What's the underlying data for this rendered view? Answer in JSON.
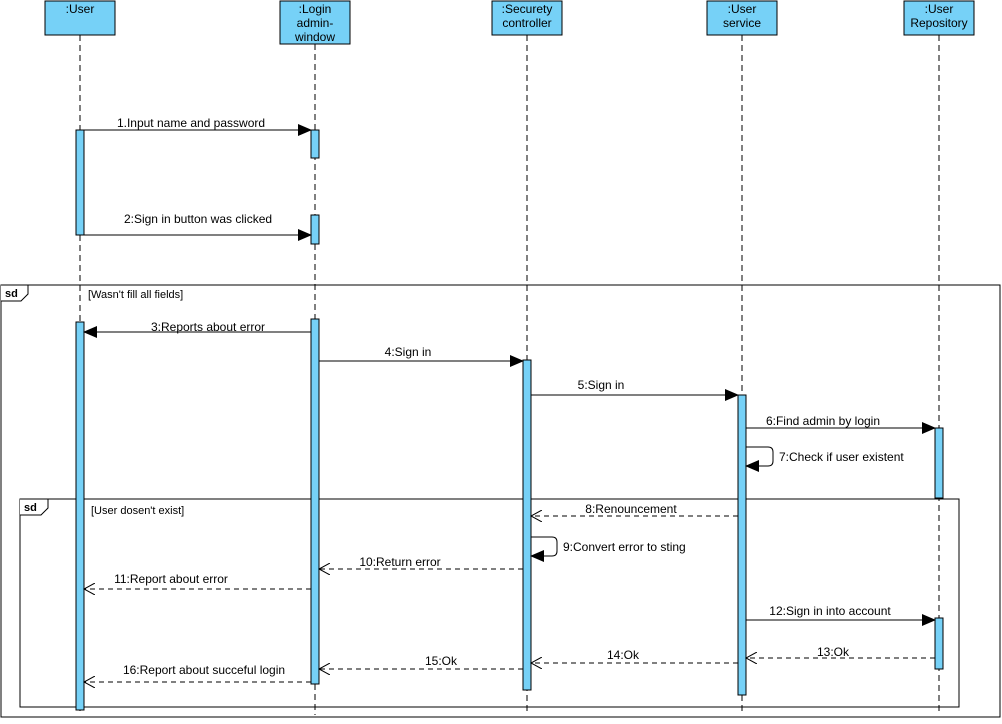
{
  "diagram": {
    "lifelines": [
      {
        "id": "user",
        "lines": [
          ":User"
        ]
      },
      {
        "id": "login",
        "lines": [
          ":Login",
          "admin-",
          "window"
        ]
      },
      {
        "id": "security",
        "lines": [
          ":Securety",
          "controller"
        ]
      },
      {
        "id": "service",
        "lines": [
          ":User",
          "service"
        ]
      },
      {
        "id": "repo",
        "lines": [
          ":User",
          "Repository"
        ]
      }
    ],
    "fragments": [
      {
        "id": "outer",
        "tag": "sd",
        "guard": "[Wasn't fill all fields]"
      },
      {
        "id": "inner",
        "tag": "sd",
        "guard": "[User dosen't exist]"
      }
    ],
    "messages": [
      {
        "id": "m1",
        "label": "1.Input name and password",
        "kind": "sync",
        "from": "user",
        "to": "login"
      },
      {
        "id": "m2",
        "label": "2:Sign in button was clicked",
        "kind": "sync",
        "from": "user",
        "to": "login"
      },
      {
        "id": "m3",
        "label": "3:Reports about error",
        "kind": "sync",
        "from": "login",
        "to": "user"
      },
      {
        "id": "m4",
        "label": "4:Sign in",
        "kind": "sync",
        "from": "login",
        "to": "security"
      },
      {
        "id": "m5",
        "label": "5:Sign in",
        "kind": "sync",
        "from": "security",
        "to": "service"
      },
      {
        "id": "m6",
        "label": "6:Find admin by login",
        "kind": "sync",
        "from": "service",
        "to": "repo"
      },
      {
        "id": "m7",
        "label": "7:Check  if user existent",
        "kind": "self",
        "from": "service",
        "to": "service"
      },
      {
        "id": "m8",
        "label": "8:Renouncement",
        "kind": "return",
        "from": "service",
        "to": "security"
      },
      {
        "id": "m9",
        "label": "9:Convert error to sting",
        "kind": "self",
        "from": "security",
        "to": "security"
      },
      {
        "id": "m10",
        "label": "10:Return error",
        "kind": "return",
        "from": "security",
        "to": "login"
      },
      {
        "id": "m11",
        "label": "11:Report about error",
        "kind": "return",
        "from": "login",
        "to": "user"
      },
      {
        "id": "m12",
        "label": "12:Sign in into account",
        "kind": "sync",
        "from": "service",
        "to": "repo"
      },
      {
        "id": "m13",
        "label": "13:Ok",
        "kind": "return",
        "from": "repo",
        "to": "service"
      },
      {
        "id": "m14",
        "label": "14:Ok",
        "kind": "return",
        "from": "service",
        "to": "security"
      },
      {
        "id": "m15",
        "label": "15:Ok",
        "kind": "return",
        "from": "security",
        "to": "login"
      },
      {
        "id": "m16",
        "label": "16:Report about succeful login",
        "kind": "return",
        "from": "login",
        "to": "user"
      }
    ],
    "colors": {
      "lifeline_fill": "#76D1F7",
      "stroke": "#000000",
      "background": "#ffffff"
    }
  }
}
